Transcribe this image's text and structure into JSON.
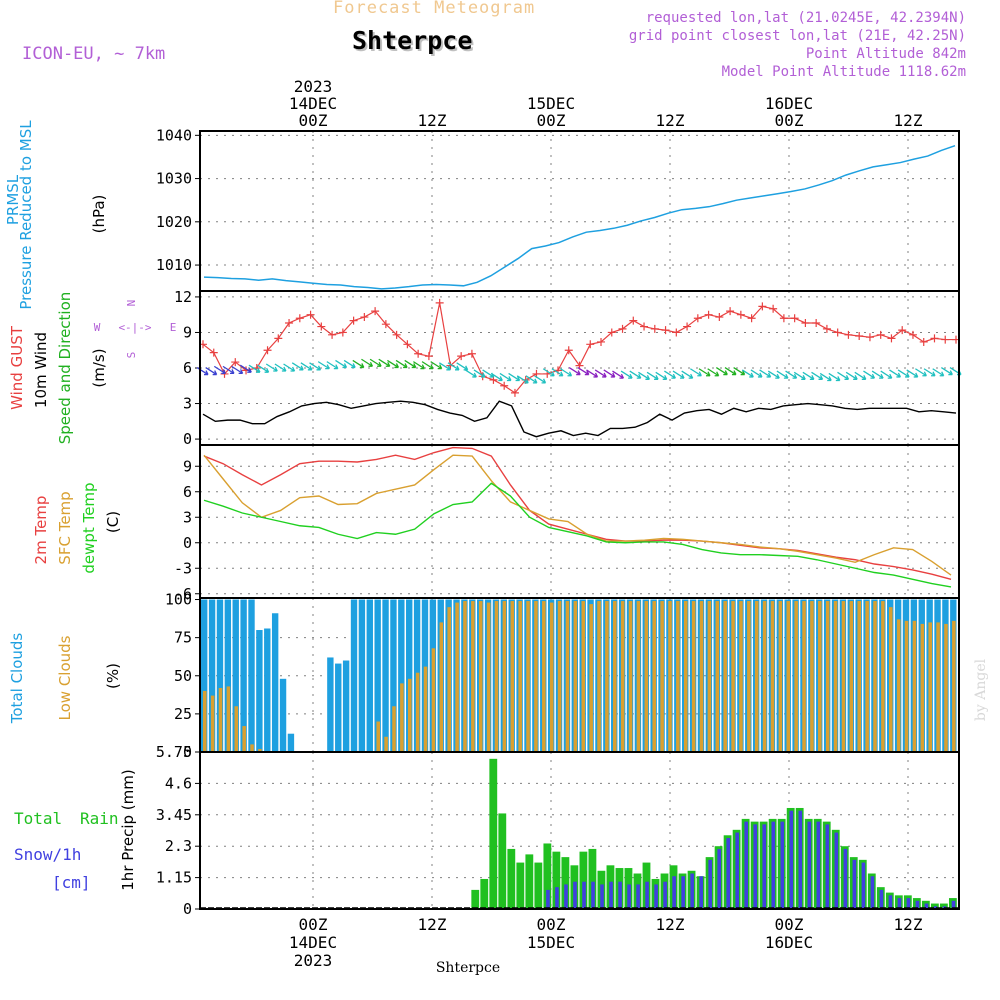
{
  "header": {
    "title": "Forecast Meteogram",
    "station": "Shterpce",
    "model": "ICON-EU, ~ 7km",
    "requested": "requested lon,lat (21.0245E, 42.2394N)",
    "grid_point": "grid point closest lon,lat (21E, 42.25N)",
    "point_altitude": "Point Altitude 842m",
    "model_altitude": "Model Point Altitude 1118.62m",
    "footer_station": "Shterpce",
    "credit": "by Angel"
  },
  "colors": {
    "pressure": "#1ea0e0",
    "gust": "#e84040",
    "wind": "#000000",
    "direction": "#20b020",
    "t2m": "#e84040",
    "sfc": "#d9a030",
    "dew": "#20d020",
    "total_clouds": "#1ea0e0",
    "low_clouds": "#d9a030",
    "rain": "#20c020",
    "snow": "#4040e0",
    "axis_label_purple": "#b25fd6"
  },
  "chart_data": {
    "time_axis": {
      "start": "2023-12-13T15:00Z",
      "end": "2023-12-16T17:00Z",
      "top_ticks": [
        {
          "time": "14DEC 00Z",
          "top": "2023",
          "mid": "14DEC",
          "bot": "00Z"
        },
        {
          "time": "14DEC 12Z",
          "top": "",
          "mid": "",
          "bot": "12Z"
        },
        {
          "time": "15DEC 00Z",
          "top": "",
          "mid": "15DEC",
          "bot": "00Z"
        },
        {
          "time": "15DEC 12Z",
          "top": "",
          "mid": "",
          "bot": "12Z"
        },
        {
          "time": "16DEC 00Z",
          "top": "",
          "mid": "16DEC",
          "bot": "00Z"
        },
        {
          "time": "16DEC 12Z",
          "top": "",
          "mid": "",
          "bot": "12Z"
        }
      ],
      "bottom_ticks": [
        {
          "bot": "00Z",
          "mid": "14DEC",
          "low": "2023"
        },
        {
          "bot": "12Z",
          "mid": "",
          "low": ""
        },
        {
          "bot": "00Z",
          "mid": "15DEC",
          "low": ""
        },
        {
          "bot": "12Z",
          "mid": "",
          "low": ""
        },
        {
          "bot": "00Z",
          "mid": "16DEC",
          "low": ""
        },
        {
          "bot": "12Z",
          "mid": "",
          "low": ""
        }
      ]
    },
    "panels": [
      {
        "type": "line",
        "id": "pressure",
        "ylabel_lines": [
          "PRMSL",
          "Pressure Reduced to MSL",
          "(hPa)"
        ],
        "ylim": [
          1004,
          1041
        ],
        "yticks": [
          1010,
          1020,
          1030,
          1040
        ],
        "series": [
          {
            "name": "PRMSL",
            "values": [
              1007.2,
              1007.1,
              1006.9,
              1006.8,
              1006.5,
              1006.8,
              1006.4,
              1006.1,
              1005.8,
              1005.5,
              1005.4,
              1005.0,
              1004.8,
              1004.5,
              1004.7,
              1005.0,
              1005.4,
              1005.5,
              1005.4,
              1005.2,
              1006.0,
              1007.5,
              1009.5,
              1011.5,
              1013.8,
              1014.4,
              1015.2,
              1016.5,
              1017.6,
              1018.0,
              1018.5,
              1019.2,
              1020.2,
              1021.0,
              1022.0,
              1022.8,
              1023.1,
              1023.5,
              1024.2,
              1025.0,
              1025.5,
              1026.0,
              1026.5,
              1027.0,
              1027.6,
              1028.5,
              1029.5,
              1030.8,
              1031.8,
              1032.7,
              1033.2,
              1033.7,
              1034.5,
              1035.2,
              1036.5,
              1037.6
            ]
          }
        ]
      },
      {
        "type": "line",
        "id": "wind",
        "ylabel_lines": [
          "Wind GUST",
          "10m Wind",
          "Speed and Direction",
          "(m/s)"
        ],
        "compass": {
          "n": "N",
          "s": "S",
          "w": "W",
          "e": "E",
          "arrows": "<-|->"
        },
        "ylim": [
          -0.5,
          12.5
        ],
        "yticks": [
          0,
          3,
          6,
          9,
          12
        ],
        "series": [
          {
            "name": "Wind GUST",
            "values": [
              8.0,
              7.3,
              5.5,
              6.5,
              5.8,
              6.0,
              7.5,
              8.5,
              9.8,
              10.2,
              10.5,
              9.5,
              8.8,
              9.0,
              10.0,
              10.3,
              10.8,
              9.7,
              8.8,
              8.0,
              7.2,
              7.0,
              11.5,
              6.2,
              7.0,
              7.2,
              5.3,
              5.0,
              4.5,
              3.9,
              5.0,
              5.5,
              5.5,
              5.8,
              7.5,
              6.2,
              8.0,
              8.2,
              9.0,
              9.3,
              10.0,
              9.5,
              9.3,
              9.2,
              9.0,
              9.5,
              10.2,
              10.5,
              10.3,
              10.8,
              10.5,
              10.2,
              11.2,
              11.0,
              10.2,
              10.2,
              9.8,
              9.8,
              9.3,
              9.0,
              8.8,
              8.7,
              8.6,
              8.8,
              8.5,
              9.2,
              8.8,
              8.2,
              8.5,
              8.4,
              8.4
            ]
          },
          {
            "name": "10m Wind",
            "values": [
              2.1,
              1.5,
              1.6,
              1.6,
              1.3,
              1.3,
              1.9,
              2.3,
              2.8,
              3.0,
              3.1,
              2.9,
              2.6,
              2.8,
              3.0,
              3.1,
              3.2,
              3.1,
              2.9,
              2.5,
              2.2,
              2.0,
              1.5,
              1.8,
              3.2,
              2.8,
              0.6,
              0.2,
              0.5,
              0.7,
              0.3,
              0.5,
              0.3,
              0.9,
              0.9,
              1.0,
              1.4,
              2.1,
              1.6,
              2.2,
              2.4,
              2.5,
              2.1,
              2.6,
              2.3,
              2.6,
              2.5,
              2.8,
              2.9,
              3.0,
              2.9,
              2.8,
              2.6,
              2.5,
              2.6,
              2.6,
              2.6,
              2.6,
              2.3,
              2.4,
              2.3,
              2.2
            ]
          },
          {
            "name": "Direction",
            "values": [
              5.7,
              5.8,
              5.9,
              6.0,
              6.1,
              6.2,
              6.3,
              6.4,
              6.3,
              6.2,
              6.1,
              5.5,
              5.2,
              5.0,
              5.6,
              5.7,
              5.5,
              5.4,
              5.3,
              5.4,
              5.6,
              5.7,
              5.5,
              5.4,
              5.3,
              5.2,
              5.3,
              5.4,
              5.5,
              5.6,
              5.7
            ]
          }
        ],
        "arrows": [
          0,
          0,
          0,
          0,
          0,
          0,
          1,
          1,
          1,
          1,
          1,
          1,
          1,
          1,
          1,
          1,
          1,
          1,
          2,
          2,
          2,
          2,
          2,
          2,
          2,
          2,
          2,
          2,
          3,
          3,
          3,
          3,
          3,
          3,
          3,
          3,
          3,
          3,
          3,
          3,
          3,
          3,
          3,
          3,
          3,
          3,
          3,
          3,
          3,
          3,
          3,
          3,
          3,
          3,
          3,
          3,
          3,
          3,
          3,
          3,
          3,
          3,
          3,
          3,
          3,
          3,
          3,
          3,
          3,
          3,
          3,
          3,
          3,
          3,
          3,
          3,
          3,
          3,
          3,
          3,
          3,
          3,
          3,
          3,
          3,
          3,
          3,
          3
        ]
      },
      {
        "type": "line",
        "id": "temp",
        "ylabel_lines": [
          "2m Temp",
          "SFC Temp",
          "dewpt Temp",
          "(C)"
        ],
        "ylim": [
          -6.5,
          11.5
        ],
        "yticks": [
          -6,
          -3,
          0,
          3,
          6,
          9
        ],
        "series": [
          {
            "name": "2m Temp",
            "values": [
              10.2,
              9.3,
              8.0,
              6.8,
              8.0,
              9.3,
              9.6,
              9.6,
              9.5,
              9.8,
              10.3,
              9.8,
              10.6,
              11.2,
              11.1,
              10.2,
              6.8,
              3.8,
              2.2,
              1.6,
              1.0,
              0.4,
              0.2,
              0.2,
              0.3,
              0.3,
              0.2,
              0.0,
              -0.3,
              -0.6,
              -0.7,
              -0.9,
              -1.3,
              -1.7,
              -2.0,
              -2.5,
              -2.8,
              -3.2,
              -3.7,
              -4.3
            ]
          },
          {
            "name": "SFC Temp",
            "values": [
              10.3,
              7.5,
              4.7,
              3.0,
              3.8,
              5.3,
              5.5,
              4.5,
              4.6,
              5.8,
              6.3,
              6.8,
              8.6,
              10.3,
              10.2,
              7.3,
              4.8,
              3.8,
              2.8,
              2.5,
              1.0,
              0.2,
              0.2,
              0.3,
              0.5,
              0.4,
              0.2,
              0.0,
              -0.2,
              -0.5,
              -0.7,
              -1.0,
              -1.4,
              -1.8,
              -2.3,
              -1.4,
              -0.6,
              -0.8,
              -2.2,
              -3.8
            ]
          },
          {
            "name": "dewpt Temp",
            "values": [
              5.0,
              4.3,
              3.5,
              3.0,
              2.5,
              2.0,
              1.8,
              1.0,
              0.5,
              1.2,
              1.0,
              1.6,
              3.4,
              4.5,
              4.8,
              7.0,
              5.5,
              3.0,
              1.8,
              1.3,
              0.8,
              0.1,
              0.0,
              0.1,
              0.1,
              -0.2,
              -0.8,
              -1.2,
              -1.4,
              -1.4,
              -1.5,
              -1.6,
              -2.0,
              -2.5,
              -3.0,
              -3.5,
              -3.8,
              -4.3,
              -4.8,
              -5.2
            ]
          }
        ]
      },
      {
        "type": "bar",
        "id": "clouds",
        "ylabel_lines": [
          "Total Clouds",
          "Low Clouds",
          "(%)"
        ],
        "ylim": [
          0,
          101
        ],
        "yticks": [
          0,
          25,
          50,
          75,
          100
        ],
        "series": [
          {
            "name": "Total Clouds",
            "values": [
              100,
              100,
              100,
              100,
              100,
              100,
              100,
              80,
              81,
              91,
              48,
              12,
              0,
              0,
              0,
              0,
              62,
              58,
              60,
              100,
              100,
              100,
              100,
              100,
              100,
              100,
              100,
              100,
              100,
              100,
              100,
              100,
              100,
              100,
              100,
              100,
              100,
              100,
              100,
              100,
              100,
              100,
              100,
              100,
              100,
              100,
              100,
              100,
              100,
              100,
              100,
              100,
              100,
              100,
              100,
              100,
              100,
              100,
              100,
              100,
              100,
              100,
              100,
              100,
              100,
              100,
              100,
              100,
              100,
              100,
              100,
              100,
              100,
              100,
              100,
              100,
              100,
              100,
              100,
              100,
              100,
              100,
              100,
              100,
              100,
              100,
              100,
              100,
              100,
              100,
              100,
              100,
              100,
              100,
              100,
              100
            ]
          },
          {
            "name": "Low Clouds",
            "values": [
              40,
              37,
              42,
              43,
              30,
              17,
              5,
              2,
              0,
              0,
              0,
              0,
              0,
              0,
              0,
              0,
              0,
              0,
              0,
              0,
              0,
              0,
              20,
              10,
              30,
              45,
              48,
              52,
              56,
              68,
              85,
              95,
              98,
              99,
              99,
              99,
              98,
              99,
              99,
              99,
              99,
              99,
              99,
              99,
              98,
              99,
              99,
              99,
              99,
              97,
              99,
              99,
              99,
              99,
              99,
              99,
              99,
              99,
              99,
              99,
              99,
              99,
              99,
              99,
              99,
              99,
              99,
              99,
              99,
              99,
              99,
              99,
              99,
              99,
              99,
              99,
              99,
              99,
              99,
              99,
              99,
              99,
              99,
              99,
              99,
              99,
              99,
              95,
              87,
              86,
              86,
              84,
              85,
              85,
              84,
              86,
              84
            ]
          }
        ]
      },
      {
        "type": "bar",
        "id": "precip",
        "ylabel_lines": [
          "Total Rain",
          "Snow/1h",
          "[cm]",
          "1hr Precip (mm)"
        ],
        "ylim": [
          0,
          5.75
        ],
        "yticks": [
          0,
          1.15,
          2.3,
          3.45,
          4.6,
          5.75
        ],
        "ytick_labels": [
          "0",
          "1.15",
          "2.3",
          "3.45",
          "4.6",
          "5.75"
        ],
        "series": [
          {
            "name": "Total Rain",
            "values": [
              0,
              0,
              0,
              0,
              0,
              0,
              0,
              0,
              0,
              0,
              0,
              0,
              0,
              0,
              0,
              0,
              0,
              0,
              0,
              0,
              0,
              0,
              0,
              0,
              0,
              0,
              0,
              0,
              0,
              0,
              0.7,
              1.1,
              5.5,
              3.5,
              2.2,
              1.7,
              2.0,
              1.7,
              2.4,
              2.1,
              1.9,
              1.6,
              2.1,
              2.2,
              1.4,
              1.6,
              1.5,
              1.5,
              1.3,
              1.7,
              1.1,
              1.3,
              1.6,
              1.3,
              1.4,
              1.2,
              1.9,
              2.3,
              2.7,
              2.9,
              3.3,
              3.2,
              3.2,
              3.3,
              3.3,
              3.7,
              3.7,
              3.3,
              3.3,
              3.2,
              2.9,
              2.3,
              1.9,
              1.8,
              1.3,
              0.8,
              0.6,
              0.5,
              0.5,
              0.4,
              0.3,
              0.2,
              0.2,
              0.4
            ]
          },
          {
            "name": "Snow/1h",
            "values": [
              0,
              0,
              0,
              0,
              0,
              0,
              0,
              0,
              0,
              0,
              0,
              0,
              0,
              0,
              0,
              0,
              0,
              0,
              0,
              0,
              0,
              0,
              0,
              0,
              0,
              0,
              0,
              0,
              0,
              0,
              0,
              0,
              0,
              0,
              0,
              0,
              0,
              0,
              0.7,
              0.8,
              0.9,
              1.0,
              1.0,
              1.0,
              0.9,
              1.0,
              1.0,
              0.9,
              0.9,
              1.0,
              0.9,
              1.0,
              1.2,
              1.2,
              1.3,
              1.2,
              1.8,
              2.2,
              2.6,
              2.8,
              3.2,
              3.1,
              3.1,
              3.2,
              3.2,
              3.6,
              3.6,
              3.2,
              3.2,
              3.1,
              2.8,
              2.2,
              1.8,
              1.7,
              1.2,
              0.7,
              0.5,
              0.4,
              0.4,
              0.3,
              0.2,
              0.1,
              0.1,
              0.3
            ]
          }
        ]
      }
    ]
  }
}
